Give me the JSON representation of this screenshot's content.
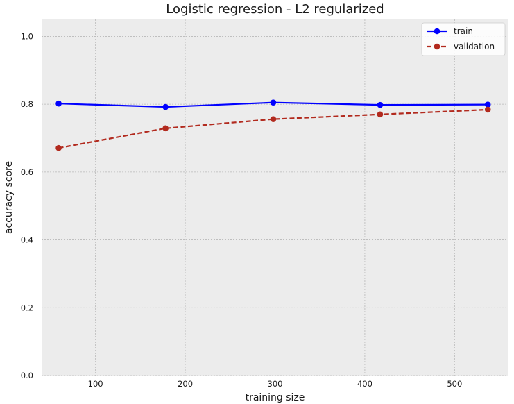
{
  "chart_data": {
    "type": "line",
    "title": "Logistic regression - L2 regularized",
    "xlabel": "training size",
    "ylabel": "accuracy score",
    "xlim": [
      40,
      560
    ],
    "ylim": [
      0.0,
      1.05
    ],
    "xticks": [
      100,
      200,
      300,
      400,
      500
    ],
    "yticks": [
      0.0,
      0.2,
      0.4,
      0.6,
      0.8,
      1.0
    ],
    "xtick_labels": [
      "100",
      "200",
      "300",
      "400",
      "500"
    ],
    "ytick_labels": [
      "0.0",
      "0.2",
      "0.4",
      "0.6",
      "0.8",
      "1.0"
    ],
    "grid": true,
    "legend_position": "top-right",
    "x": [
      59,
      178,
      298,
      417,
      537
    ],
    "series": [
      {
        "name": "train",
        "values": [
          0.802,
          0.792,
          0.805,
          0.798,
          0.799
        ],
        "color": "#0000ff",
        "linestyle": "solid",
        "marker": "circle"
      },
      {
        "name": "validation",
        "values": [
          0.671,
          0.729,
          0.756,
          0.77,
          0.784
        ],
        "color": "#b22a1e",
        "linestyle": "dashed",
        "marker": "circle"
      }
    ]
  }
}
